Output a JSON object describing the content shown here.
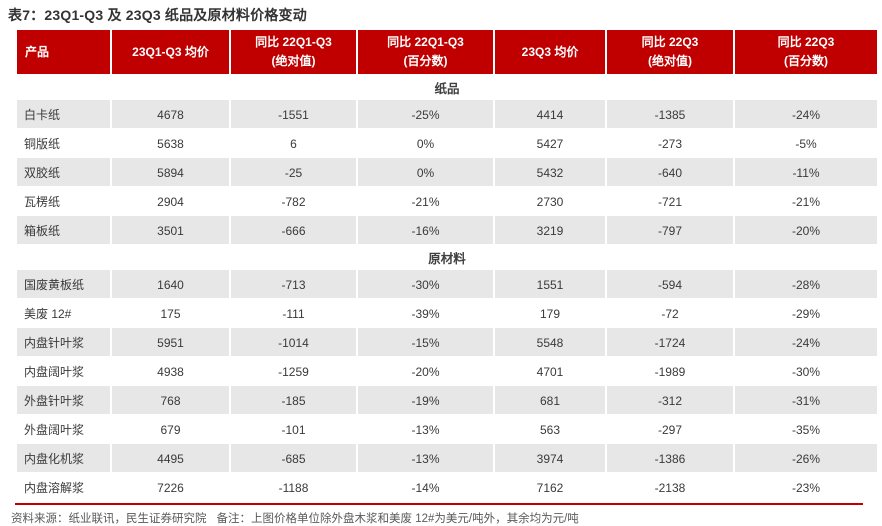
{
  "title": "表7：23Q1-Q3 及 23Q3 纸品及原材料价格变动",
  "colors": {
    "header_bg": "#C00000",
    "row_alt_bg": "#E7E7E7",
    "bottom_border": "#C00000",
    "title_text": "#333333",
    "cell_text": "#3A3A3A",
    "footer_text": "#595959"
  },
  "table": {
    "headers": [
      {
        "l1": "产品",
        "l2": ""
      },
      {
        "l1": "23Q1-Q3 均价",
        "l2": ""
      },
      {
        "l1": "同比 22Q1-Q3",
        "l2": "(绝对值)"
      },
      {
        "l1": "同比 22Q1-Q3",
        "l2": "(百分数)"
      },
      {
        "l1": "23Q3 均价",
        "l2": ""
      },
      {
        "l1": "同比 22Q3",
        "l2": "(绝对值)"
      },
      {
        "l1": "同比 22Q3",
        "l2": "(百分数)"
      }
    ],
    "sections": [
      {
        "name": "纸品",
        "rows": [
          [
            "白卡纸",
            "4678",
            "-1551",
            "-25%",
            "4414",
            "-1385",
            "-24%"
          ],
          [
            "铜版纸",
            "5638",
            "6",
            "0%",
            "5427",
            "-273",
            "-5%"
          ],
          [
            "双胶纸",
            "5894",
            "-25",
            "0%",
            "5432",
            "-640",
            "-11%"
          ],
          [
            "瓦楞纸",
            "2904",
            "-782",
            "-21%",
            "2730",
            "-721",
            "-21%"
          ],
          [
            "箱板纸",
            "3501",
            "-666",
            "-16%",
            "3219",
            "-797",
            "-20%"
          ]
        ]
      },
      {
        "name": "原材料",
        "rows": [
          [
            "国废黄板纸",
            "1640",
            "-713",
            "-30%",
            "1551",
            "-594",
            "-28%"
          ],
          [
            "美废 12#",
            "175",
            "-111",
            "-39%",
            "179",
            "-72",
            "-29%"
          ],
          [
            "内盘针叶浆",
            "5951",
            "-1014",
            "-15%",
            "5548",
            "-1724",
            "-24%"
          ],
          [
            "内盘阔叶浆",
            "4938",
            "-1259",
            "-20%",
            "4701",
            "-1989",
            "-30%"
          ],
          [
            "外盘针叶浆",
            "768",
            "-185",
            "-19%",
            "681",
            "-312",
            "-31%"
          ],
          [
            "外盘阔叶浆",
            "679",
            "-101",
            "-13%",
            "563",
            "-297",
            "-35%"
          ],
          [
            "内盘化机浆",
            "4495",
            "-685",
            "-13%",
            "3974",
            "-1386",
            "-26%"
          ],
          [
            "内盘溶解浆",
            "7226",
            "-1188",
            "-14%",
            "7162",
            "-2138",
            "-23%"
          ]
        ]
      }
    ]
  },
  "footer": {
    "source": "资料来源：纸业联讯，民生证券研究院",
    "note": "备注：上图价格单位除外盘木浆和美废 12#为美元/吨外，其余均为元/吨"
  }
}
